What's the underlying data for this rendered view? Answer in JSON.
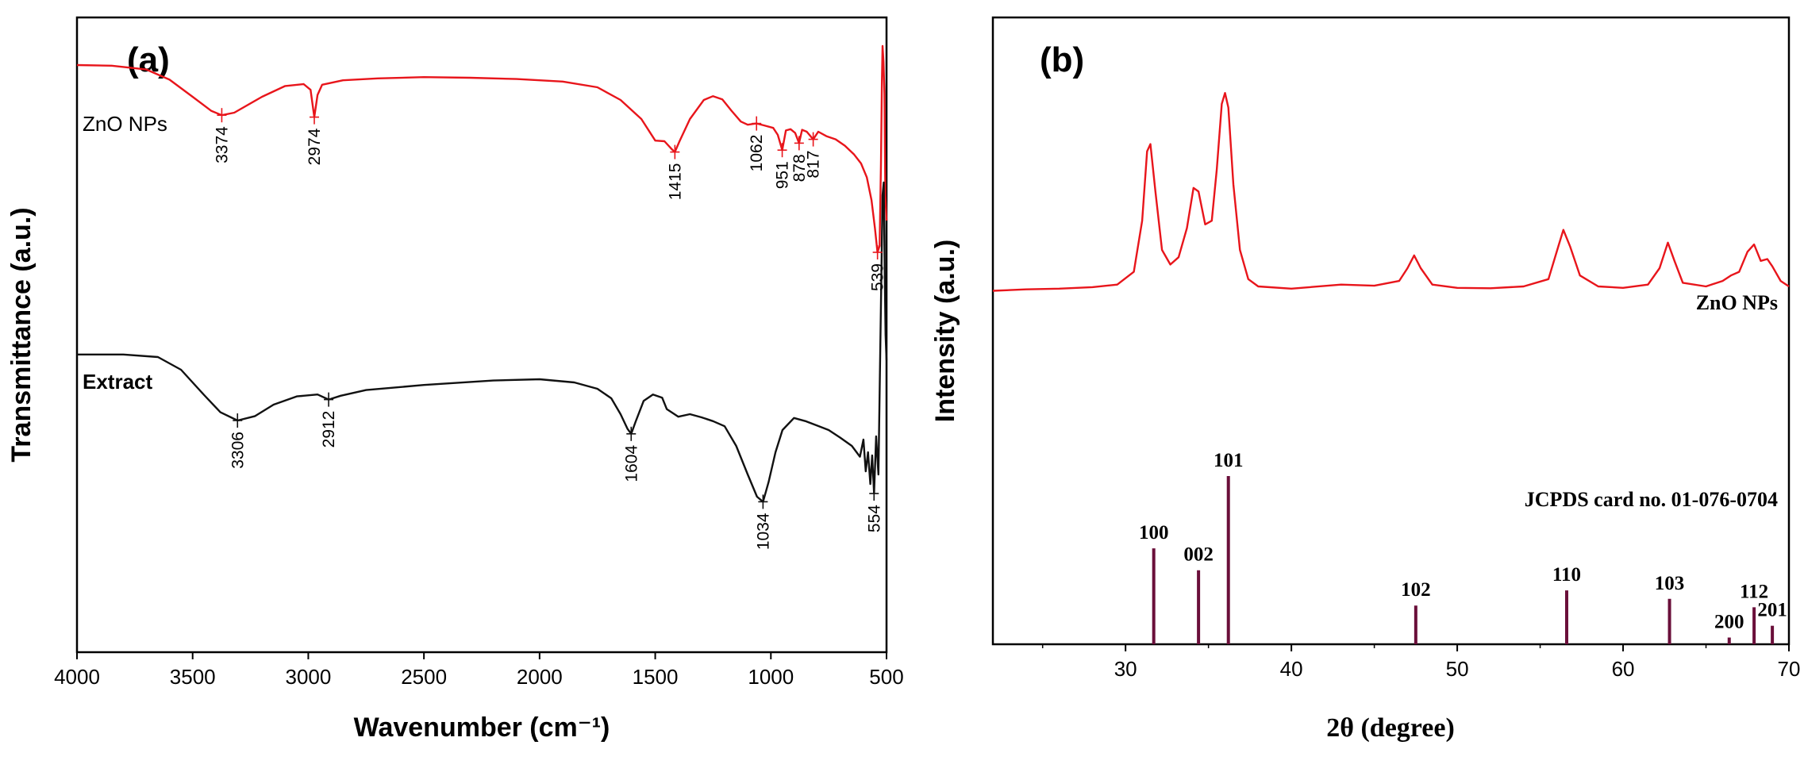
{
  "chart_data": [
    {
      "type": "line",
      "panel": "(a)",
      "title": "",
      "xlabel": "Wavenumber (cm⁻¹)",
      "ylabel": "Transmittance (a.u.)",
      "xlim": [
        4000,
        500
      ],
      "x_reversed": true,
      "xticks": [
        4000,
        3500,
        3000,
        2500,
        2000,
        1500,
        1000,
        500
      ],
      "ylim": [
        0,
        100
      ],
      "y_ticks_shown": false,
      "series": [
        {
          "name": "ZnO NPs",
          "color": "#e8151b",
          "points": [
            [
              4000,
              92.5
            ],
            [
              3850,
              92.4
            ],
            [
              3700,
              91.8
            ],
            [
              3600,
              90.2
            ],
            [
              3500,
              87.5
            ],
            [
              3420,
              85.3
            ],
            [
              3374,
              84.6
            ],
            [
              3320,
              85.0
            ],
            [
              3200,
              87.5
            ],
            [
              3100,
              89.2
            ],
            [
              3020,
              89.5
            ],
            [
              2990,
              88.6
            ],
            [
              2974,
              84.3
            ],
            [
              2960,
              87.8
            ],
            [
              2940,
              89.4
            ],
            [
              2850,
              90.1
            ],
            [
              2700,
              90.4
            ],
            [
              2500,
              90.6
            ],
            [
              2300,
              90.5
            ],
            [
              2100,
              90.3
            ],
            [
              1900,
              89.9
            ],
            [
              1750,
              89.0
            ],
            [
              1650,
              87.0
            ],
            [
              1560,
              84.0
            ],
            [
              1500,
              80.6
            ],
            [
              1460,
              80.5
            ],
            [
              1430,
              79.3
            ],
            [
              1415,
              78.8
            ],
            [
              1395,
              80.5
            ],
            [
              1350,
              84.0
            ],
            [
              1290,
              87.0
            ],
            [
              1250,
              87.6
            ],
            [
              1210,
              87.1
            ],
            [
              1170,
              85.3
            ],
            [
              1130,
              83.6
            ],
            [
              1100,
              83.1
            ],
            [
              1062,
              83.3
            ],
            [
              1030,
              83.0
            ],
            [
              990,
              82.6
            ],
            [
              970,
              81.5
            ],
            [
              951,
              79.1
            ],
            [
              935,
              82.2
            ],
            [
              915,
              82.4
            ],
            [
              895,
              81.8
            ],
            [
              878,
              80.2
            ],
            [
              865,
              82.3
            ],
            [
              845,
              82.0
            ],
            [
              817,
              80.8
            ],
            [
              795,
              82.0
            ],
            [
              760,
              81.3
            ],
            [
              720,
              80.8
            ],
            [
              680,
              79.8
            ],
            [
              640,
              78.4
            ],
            [
              610,
              77.0
            ],
            [
              585,
              74.8
            ],
            [
              565,
              71.2
            ],
            [
              550,
              66.8
            ],
            [
              539,
              63.0
            ],
            [
              530,
              64.0
            ],
            [
              524,
              77.0
            ],
            [
              520,
              90.0
            ],
            [
              517,
              95.5
            ],
            [
              513,
              93.0
            ],
            [
              509,
              88.0
            ],
            [
              505,
              72.0
            ],
            [
              500,
              68.0
            ]
          ]
        },
        {
          "name": "Extract",
          "color": "#111111",
          "points": [
            [
              4000,
              46.9
            ],
            [
              3800,
              46.9
            ],
            [
              3650,
              46.5
            ],
            [
              3550,
              44.5
            ],
            [
              3450,
              40.5
            ],
            [
              3380,
              37.8
            ],
            [
              3306,
              36.5
            ],
            [
              3230,
              37.2
            ],
            [
              3150,
              39.0
            ],
            [
              3050,
              40.3
            ],
            [
              2960,
              40.6
            ],
            [
              2912,
              39.8
            ],
            [
              2860,
              40.4
            ],
            [
              2750,
              41.3
            ],
            [
              2500,
              42.1
            ],
            [
              2200,
              42.8
            ],
            [
              2000,
              43.0
            ],
            [
              1850,
              42.5
            ],
            [
              1750,
              41.5
            ],
            [
              1690,
              40.0
            ],
            [
              1650,
              37.5
            ],
            [
              1620,
              35.2
            ],
            [
              1604,
              34.4
            ],
            [
              1585,
              36.3
            ],
            [
              1550,
              39.6
            ],
            [
              1510,
              40.6
            ],
            [
              1470,
              40.1
            ],
            [
              1450,
              38.3
            ],
            [
              1400,
              37.1
            ],
            [
              1350,
              37.5
            ],
            [
              1300,
              37.0
            ],
            [
              1250,
              36.4
            ],
            [
              1200,
              35.6
            ],
            [
              1150,
              32.5
            ],
            [
              1100,
              28.0
            ],
            [
              1060,
              24.5
            ],
            [
              1034,
              23.7
            ],
            [
              1010,
              26.8
            ],
            [
              980,
              31.5
            ],
            [
              950,
              35.0
            ],
            [
              900,
              36.9
            ],
            [
              850,
              36.4
            ],
            [
              800,
              35.7
            ],
            [
              750,
              35.0
            ],
            [
              700,
              33.8
            ],
            [
              650,
              32.5
            ],
            [
              615,
              30.8
            ],
            [
              600,
              33.5
            ],
            [
              590,
              28.5
            ],
            [
              580,
              31.5
            ],
            [
              570,
              26.5
            ],
            [
              562,
              31.0
            ],
            [
              554,
              25.0
            ],
            [
              545,
              34.0
            ],
            [
              535,
              28.0
            ],
            [
              528,
              45.0
            ],
            [
              522,
              60.0
            ],
            [
              517,
              72.0
            ],
            [
              512,
              74.0
            ],
            [
              508,
              60.0
            ],
            [
              504,
              50.0
            ],
            [
              500,
              46.0
            ]
          ]
        }
      ],
      "annotations": [
        {
          "label": "3374",
          "series": "ZnO NPs",
          "x": 3374
        },
        {
          "label": "2974",
          "series": "ZnO NPs",
          "x": 2974
        },
        {
          "label": "1415",
          "series": "ZnO NPs",
          "x": 1415
        },
        {
          "label": "1062",
          "series": "ZnO NPs",
          "x": 1062
        },
        {
          "label": "951",
          "series": "ZnO NPs",
          "x": 951
        },
        {
          "label": "878",
          "series": "ZnO NPs",
          "x": 878
        },
        {
          "label": "817",
          "series": "ZnO NPs",
          "x": 817
        },
        {
          "label": "539",
          "series": "ZnO NPs",
          "x": 539
        },
        {
          "label": "3306",
          "series": "Extract",
          "x": 3306
        },
        {
          "label": "2912",
          "series": "Extract",
          "x": 2912
        },
        {
          "label": "1604",
          "series": "Extract",
          "x": 1604
        },
        {
          "label": "1034",
          "series": "Extract",
          "x": 1034
        },
        {
          "label": "554",
          "series": "Extract",
          "x": 554
        }
      ]
    },
    {
      "type": "line",
      "panel": "(b)",
      "title": "",
      "xlabel": "2θ (degree)",
      "ylabel": "Intensity (a.u.)",
      "xlim": [
        22,
        70
      ],
      "xticks": [
        30,
        40,
        50,
        60,
        70
      ],
      "ylim": [
        0,
        100
      ],
      "y_ticks_shown": false,
      "series": [
        {
          "name": "ZnO NPs",
          "color": "#e8151b",
          "points": [
            [
              22,
              38.8
            ],
            [
              24,
              39.2
            ],
            [
              26,
              39.4
            ],
            [
              28,
              39.8
            ],
            [
              29.5,
              40.5
            ],
            [
              30.5,
              44.0
            ],
            [
              31.0,
              58.0
            ],
            [
              31.3,
              77.0
            ],
            [
              31.5,
              79.0
            ],
            [
              31.8,
              66.0
            ],
            [
              32.2,
              50.0
            ],
            [
              32.7,
              46.0
            ],
            [
              33.2,
              48.0
            ],
            [
              33.7,
              56.0
            ],
            [
              34.1,
              67.0
            ],
            [
              34.4,
              66.0
            ],
            [
              34.8,
              57.0
            ],
            [
              35.2,
              58.0
            ],
            [
              35.5,
              72.0
            ],
            [
              35.8,
              90.0
            ],
            [
              36.0,
              93.0
            ],
            [
              36.2,
              89.0
            ],
            [
              36.5,
              68.0
            ],
            [
              36.9,
              50.0
            ],
            [
              37.4,
              42.0
            ],
            [
              38,
              40.0
            ],
            [
              40,
              39.4
            ],
            [
              43,
              40.5
            ],
            [
              45,
              40.2
            ],
            [
              46.5,
              41.5
            ],
            [
              47.0,
              45.0
            ],
            [
              47.4,
              48.5
            ],
            [
              47.8,
              45.0
            ],
            [
              48.5,
              40.5
            ],
            [
              50,
              39.6
            ],
            [
              52,
              39.5
            ],
            [
              54,
              40.0
            ],
            [
              55.5,
              42.0
            ],
            [
              56.1,
              51.0
            ],
            [
              56.4,
              55.5
            ],
            [
              56.8,
              51.0
            ],
            [
              57.4,
              43.0
            ],
            [
              58.5,
              40.0
            ],
            [
              60,
              39.6
            ],
            [
              61.5,
              40.5
            ],
            [
              62.2,
              45.0
            ],
            [
              62.7,
              52.0
            ],
            [
              63.1,
              47.0
            ],
            [
              63.6,
              41.0
            ],
            [
              65,
              40.0
            ],
            [
              66.0,
              41.5
            ],
            [
              66.5,
              43.0
            ],
            [
              67.0,
              44.0
            ],
            [
              67.5,
              49.5
            ],
            [
              67.9,
              51.5
            ],
            [
              68.3,
              47.0
            ],
            [
              68.7,
              47.5
            ],
            [
              69.0,
              45.5
            ],
            [
              69.5,
              41.5
            ],
            [
              70,
              40.0
            ]
          ]
        }
      ],
      "reference": {
        "label": "JCPDS card no. 01-076-0704",
        "color": "#6a0f3a",
        "lines": [
          {
            "two_theta": 31.7,
            "intensity": 57,
            "hkl": "100"
          },
          {
            "two_theta": 34.4,
            "intensity": 44,
            "hkl": "002"
          },
          {
            "two_theta": 36.2,
            "intensity": 100,
            "hkl": "101"
          },
          {
            "two_theta": 47.5,
            "intensity": 23,
            "hkl": "102"
          },
          {
            "two_theta": 56.6,
            "intensity": 32,
            "hkl": "110"
          },
          {
            "two_theta": 62.8,
            "intensity": 27,
            "hkl": "103"
          },
          {
            "two_theta": 66.4,
            "intensity": 4,
            "hkl": "200"
          },
          {
            "two_theta": 67.9,
            "intensity": 22,
            "hkl": "112"
          },
          {
            "two_theta": 69.0,
            "intensity": 11,
            "hkl": "201"
          }
        ]
      }
    }
  ]
}
